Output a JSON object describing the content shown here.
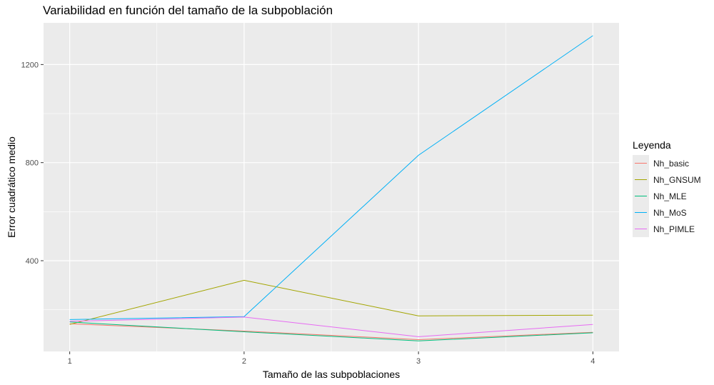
{
  "chart_data": {
    "type": "line",
    "title": "Variabilidad en función del tamaño de la subpoblación",
    "xlabel": "Tamaño de las subpoblaciones",
    "ylabel": "Error cuadrático medio",
    "x": [
      1,
      2,
      3,
      4
    ],
    "xticks": [
      "1",
      "2",
      "3",
      "4"
    ],
    "yticks": [
      400,
      800,
      1200
    ],
    "xlim": [
      0.85,
      4.15
    ],
    "ylim": [
      30,
      1370
    ],
    "grid": true,
    "legend_title": "Leyenda",
    "legend_position": "right",
    "series": [
      {
        "name": "Nh_basic",
        "color": "#F8766D",
        "values": [
          143,
          113,
          78,
          108
        ]
      },
      {
        "name": "Nh_GNSUM",
        "color": "#A3A500",
        "values": [
          140,
          320,
          175,
          178
        ]
      },
      {
        "name": "Nh_MLE",
        "color": "#00BF7D",
        "values": [
          150,
          110,
          73,
          106
        ]
      },
      {
        "name": "Nh_MoS",
        "color": "#00B0F6",
        "values": [
          160,
          172,
          830,
          1318
        ]
      },
      {
        "name": "Nh_PIMLE",
        "color": "#E76BF3",
        "values": [
          153,
          170,
          90,
          140
        ]
      }
    ]
  }
}
